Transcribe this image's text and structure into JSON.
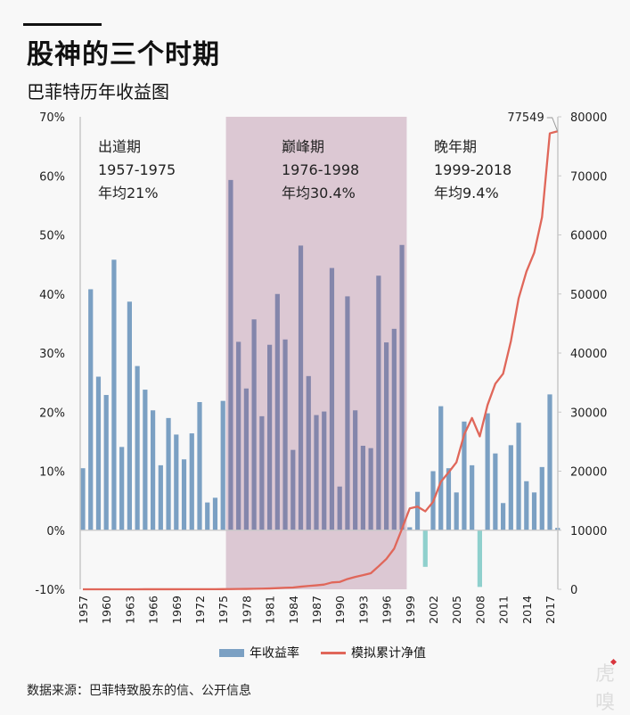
{
  "header": {
    "title": "股神的三个时期",
    "subtitle": "巴菲特历年收益图"
  },
  "footer": {
    "source": "数据来源：巴菲特致股东的信、公开信息",
    "watermark": "虎嗅"
  },
  "colors": {
    "bar_positive": "#7ba0c3",
    "bar_positive_in_peak": "#8486ab",
    "bar_negative": "#8fd0cd",
    "line": "#e0675a",
    "peak_band": "#dcc8d3",
    "axis": "#c8c8c8"
  },
  "chart_data": {
    "type": "bar+line",
    "title": "巴菲特历年收益图",
    "x": [
      1957,
      1958,
      1959,
      1960,
      1961,
      1962,
      1963,
      1964,
      1965,
      1966,
      1967,
      1968,
      1969,
      1970,
      1971,
      1972,
      1973,
      1974,
      1975,
      1976,
      1977,
      1978,
      1979,
      1980,
      1981,
      1982,
      1983,
      1984,
      1985,
      1986,
      1987,
      1988,
      1989,
      1990,
      1991,
      1992,
      1993,
      1994,
      1995,
      1996,
      1997,
      1998,
      1999,
      2000,
      2001,
      2002,
      2003,
      2004,
      2005,
      2006,
      2007,
      2008,
      2009,
      2010,
      2011,
      2012,
      2013,
      2014,
      2015,
      2016,
      2017,
      2018
    ],
    "xticks": [
      "1957",
      "1960",
      "1963",
      "1966",
      "1969",
      "1972",
      "1975",
      "1978",
      "1981",
      "1984",
      "1987",
      "1990",
      "1993",
      "1996",
      "1999",
      "2002",
      "2005",
      "2008",
      "2011",
      "2014",
      "2017"
    ],
    "series": [
      {
        "name": "年收益率",
        "type": "bar",
        "axis": "left",
        "unit": "%",
        "values": [
          10.5,
          40.8,
          26.0,
          22.9,
          45.8,
          14.1,
          38.7,
          27.8,
          23.8,
          20.3,
          11.0,
          19.0,
          16.2,
          12.0,
          16.4,
          21.7,
          4.7,
          5.5,
          21.9,
          59.3,
          31.9,
          24.0,
          35.7,
          19.3,
          31.4,
          40.0,
          32.3,
          13.6,
          48.2,
          26.1,
          19.5,
          20.1,
          44.4,
          7.4,
          39.6,
          20.3,
          14.3,
          13.9,
          43.1,
          31.8,
          34.1,
          48.3,
          0.5,
          6.5,
          -6.2,
          10.0,
          21.0,
          10.5,
          6.4,
          18.4,
          11.0,
          -9.6,
          19.8,
          13.0,
          4.6,
          14.4,
          18.2,
          8.3,
          6.4,
          10.7,
          23.0,
          0.4
        ]
      },
      {
        "name": "模拟累计净值",
        "type": "line",
        "axis": "right",
        "values": [
          1,
          1,
          2,
          2,
          3,
          3,
          4,
          5,
          6,
          8,
          9,
          10,
          12,
          14,
          16,
          19,
          20,
          21,
          26,
          41,
          54,
          67,
          91,
          108,
          142,
          199,
          264,
          300,
          444,
          560,
          669,
          803,
          1160,
          1246,
          1739,
          2092,
          2391,
          2723,
          3897,
          5136,
          6887,
          10213,
          13700,
          14000,
          13200,
          14800,
          18200,
          19800,
          21500,
          26200,
          29000,
          25900,
          31200,
          34800,
          36500,
          42000,
          49300,
          53800,
          57000,
          63000,
          77200,
          77549
        ]
      }
    ],
    "yaxis_left": {
      "min": -10,
      "max": 70,
      "step": 10,
      "ticks": [
        "-10%",
        "0%",
        "10%",
        "20%",
        "30%",
        "40%",
        "50%",
        "60%",
        "70%"
      ]
    },
    "yaxis_right": {
      "min": 0,
      "max": 80000,
      "step": 10000,
      "ticks": [
        "0",
        "10000",
        "20000",
        "30000",
        "40000",
        "50000",
        "60000",
        "70000",
        "80000"
      ]
    },
    "annotations": [
      {
        "period": "出道期",
        "range": "1957-1975",
        "avg": "年均21%"
      },
      {
        "period": "巅峰期",
        "range": "1976-1998",
        "avg": "年均30.4%"
      },
      {
        "period": "晚年期",
        "range": "1999-2018",
        "avg": "年均9.4%"
      }
    ],
    "highlight_band": {
      "from": 1976,
      "to": 1998
    },
    "end_label": "77549",
    "legend": [
      "年收益率",
      "模拟累计净值"
    ],
    "legend_position": "bottom",
    "grid": false
  }
}
